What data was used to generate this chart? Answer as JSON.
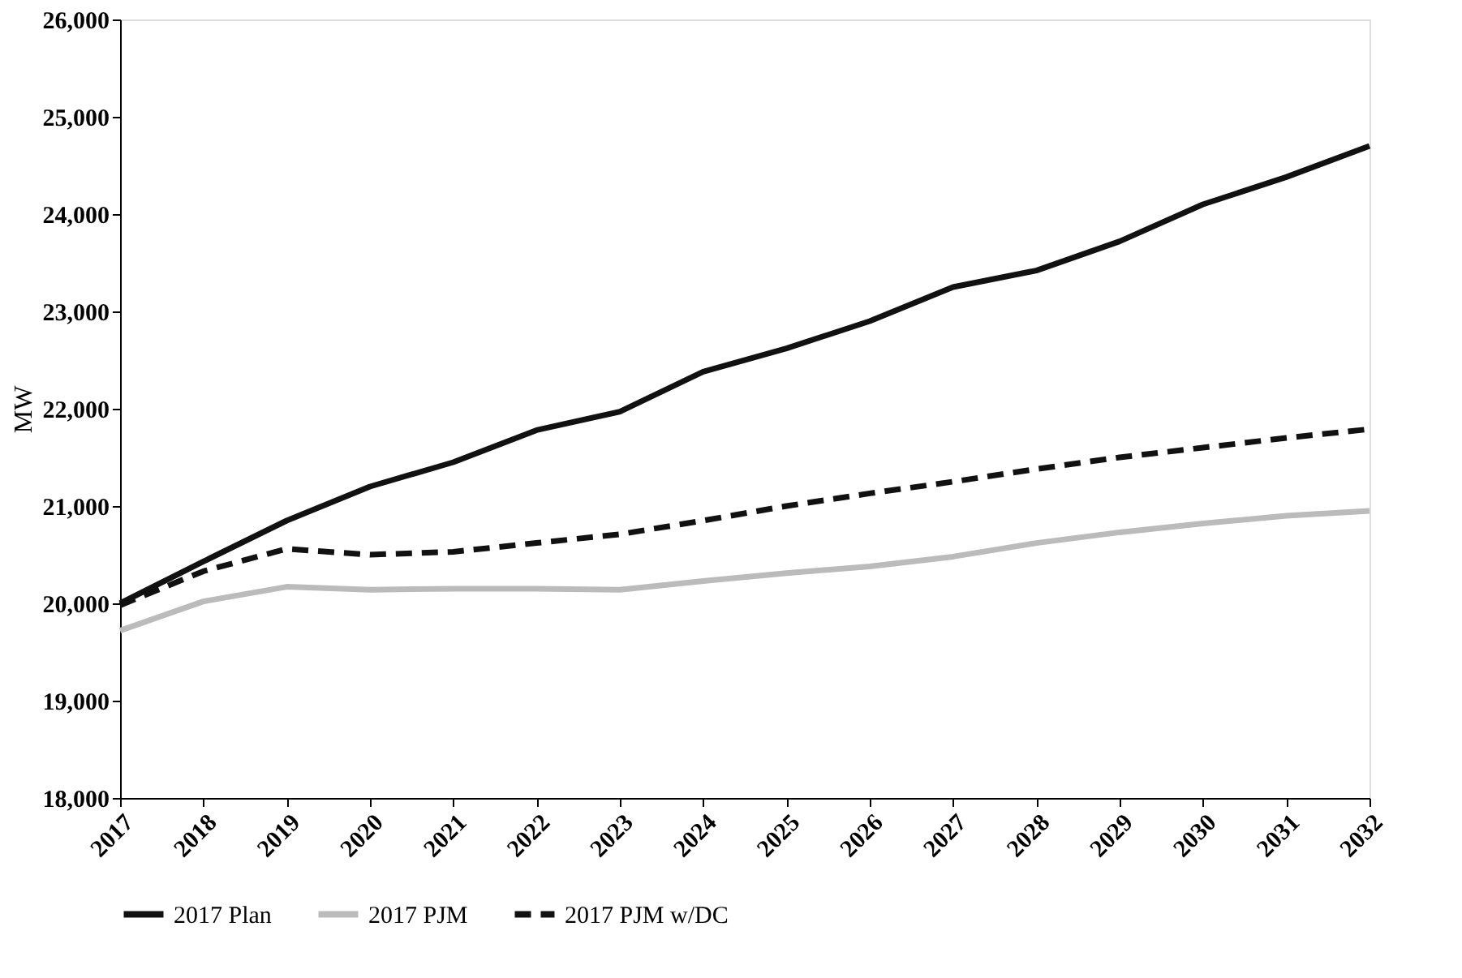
{
  "chart_data": {
    "type": "line",
    "ylabel": "MW",
    "categories": [
      "2017",
      "2018",
      "2019",
      "2020",
      "2021",
      "2022",
      "2023",
      "2024",
      "2025",
      "2026",
      "2027",
      "2028",
      "2029",
      "2030",
      "2031",
      "2032"
    ],
    "ylim": [
      18000,
      26000
    ],
    "yticks": [
      {
        "value": 18000,
        "label": "18,000"
      },
      {
        "value": 19000,
        "label": "19,000"
      },
      {
        "value": 20000,
        "label": "20,000"
      },
      {
        "value": 21000,
        "label": "21,000"
      },
      {
        "value": 22000,
        "label": "22,000"
      },
      {
        "value": 23000,
        "label": "23,000"
      },
      {
        "value": 24000,
        "label": "24,000"
      },
      {
        "value": 25000,
        "label": "25,000"
      },
      {
        "value": 26000,
        "label": "26,000"
      }
    ],
    "grid": false,
    "legend": "bottom",
    "marker": "none",
    "series": [
      {
        "name": "2017 Plan",
        "color": "#111111",
        "line_style": "solid",
        "values": [
          20000,
          20430,
          20850,
          21200,
          21450,
          21780,
          21970,
          22380,
          22620,
          22900,
          23250,
          23420,
          23720,
          24100,
          24380,
          24700
        ]
      },
      {
        "name": "2017 PJM",
        "color": "#bbbbbb",
        "line_style": "solid",
        "values": [
          19720,
          20020,
          20170,
          20140,
          20150,
          20150,
          20140,
          20230,
          20310,
          20380,
          20480,
          20620,
          20730,
          20820,
          20900,
          20950
        ]
      },
      {
        "name": "2017 PJM w/DC",
        "color": "#111111",
        "line_style": "dashed",
        "values": [
          19980,
          20330,
          20560,
          20500,
          20530,
          20620,
          20710,
          20850,
          21000,
          21130,
          21250,
          21380,
          21500,
          21600,
          21700,
          21790
        ]
      }
    ]
  }
}
